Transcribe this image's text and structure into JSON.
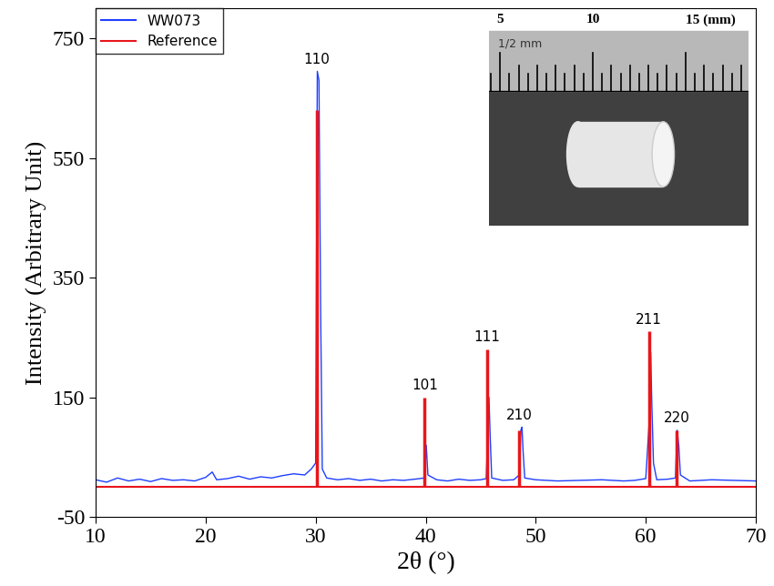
{
  "chart_data": {
    "type": "line",
    "x_label": "2θ (°)",
    "y_label": "Intensity (Arbitrary Unit)",
    "xlim": [
      10,
      70
    ],
    "xticks": [
      10,
      20,
      30,
      40,
      50,
      60,
      70
    ],
    "ylim": [
      -50,
      800
    ],
    "yticks": [
      -50,
      150,
      350,
      550,
      750
    ],
    "legend": "upper left",
    "series": [
      {
        "name": "WW073",
        "color": "#1f3fff",
        "type": "line",
        "x": [
          10,
          11,
          12,
          13,
          14,
          15,
          16,
          17,
          18,
          19,
          20,
          20.6,
          21,
          22,
          23,
          24,
          25,
          26,
          27,
          28,
          29,
          29.6,
          30.0,
          30.15,
          30.3,
          30.45,
          30.6,
          31,
          32,
          33,
          34,
          35,
          36,
          37,
          38,
          39,
          39.9,
          40.05,
          40.2,
          41,
          42,
          43,
          44,
          45,
          45.5,
          45.75,
          45.85,
          46.0,
          47,
          48,
          48.5,
          48.65,
          48.75,
          48.85,
          49.0,
          50,
          52,
          54,
          56,
          58,
          59,
          60.0,
          60.35,
          60.45,
          60.55,
          60.7,
          61,
          62,
          62.7,
          62.85,
          63.0,
          63.15,
          64,
          66,
          68,
          70
        ],
        "values": [
          12,
          8,
          15,
          10,
          13,
          9,
          14,
          11,
          12,
          10,
          16,
          25,
          12,
          14,
          18,
          13,
          17,
          15,
          19,
          22,
          20,
          30,
          40,
          695,
          680,
          300,
          30,
          15,
          12,
          14,
          11,
          13,
          10,
          12,
          11,
          13,
          15,
          70,
          20,
          12,
          10,
          13,
          11,
          12,
          14,
          150,
          90,
          15,
          11,
          12,
          20,
          95,
          100,
          60,
          15,
          12,
          10,
          11,
          12,
          10,
          11,
          14,
          120,
          225,
          140,
          40,
          12,
          13,
          15,
          95,
          70,
          20,
          10,
          12,
          11,
          10
        ]
      },
      {
        "name": "Reference",
        "color": "#e8161b",
        "type": "stem",
        "x": [
          30.1,
          39.9,
          45.6,
          48.5,
          60.3,
          62.8
        ],
        "values": [
          630,
          150,
          230,
          95,
          260,
          95
        ],
        "labels": [
          "110",
          "101",
          "111",
          "210",
          "211",
          "220"
        ]
      }
    ],
    "inset": {
      "xlim": [
        4.4,
        18.4
      ],
      "ruler_ticks": [
        5,
        10,
        15
      ],
      "unit": "(mm)",
      "scale_text": "1/2 mm"
    }
  }
}
